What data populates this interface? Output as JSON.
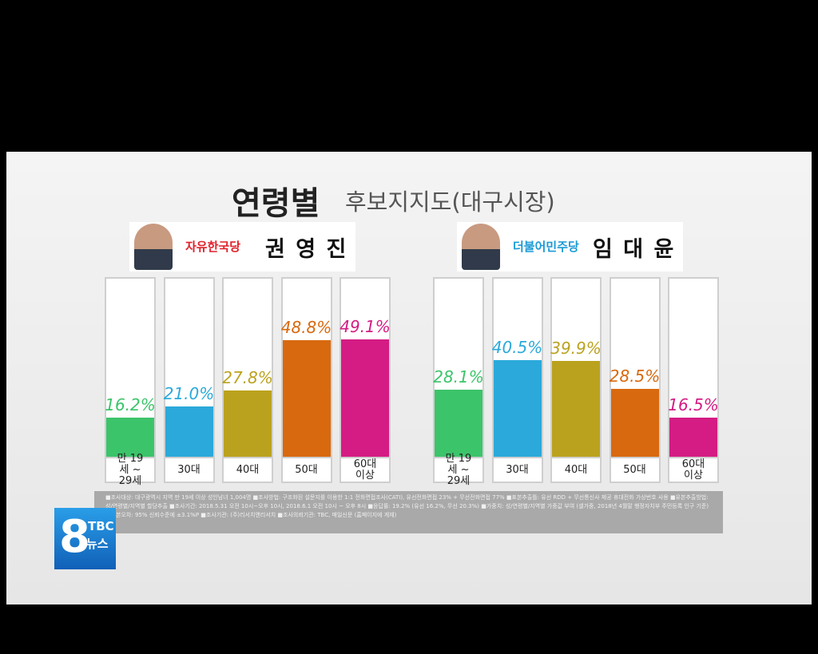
{
  "title": "연령별",
  "subtitle": "후보지지도(대구시장)",
  "chart_data": [
    {
      "type": "bar",
      "party": "자유한국당",
      "party_color": "#e0202a",
      "candidate": "권 영 진",
      "categories": [
        "만 19세 ~ 29세",
        "30대",
        "40대",
        "50대",
        "60대 이상"
      ],
      "values": [
        16.2,
        21.0,
        27.8,
        48.8,
        49.1
      ],
      "value_labels": [
        "16.2%",
        "21.0%",
        "27.8%",
        "48.8%",
        "49.1%"
      ],
      "colors": [
        "#3cc46a",
        "#2ba9da",
        "#bba21e",
        "#d8690f",
        "#d41c84"
      ]
    },
    {
      "type": "bar",
      "party": "더불어민주당",
      "party_color": "#1a9ad6",
      "candidate": "임 대 윤",
      "categories": [
        "만 19세 ~ 29세",
        "30대",
        "40대",
        "50대",
        "60대 이상"
      ],
      "values": [
        28.1,
        40.5,
        39.9,
        28.5,
        16.5
      ],
      "value_labels": [
        "28.1%",
        "40.5%",
        "39.9%",
        "28.5%",
        "16.5%"
      ],
      "colors": [
        "#3cc46a",
        "#2ba9da",
        "#bba21e",
        "#d8690f",
        "#d41c84"
      ]
    }
  ],
  "note": "■조사대상: 대구광역시 지역 만 19세 이상 성인남녀 1,004명 ■조사방법: 구조화된 설문지를 이용한 1:1 전화면접조사(CATI), 유선전화면접 23% + 무선전화면접 77% ■표본추출틀: 유선 RDD + 무선통신사 제공 휴대전화 가상번호 사용 ■유본추출방법: 성/연령별/지역별 할당추출 ■조사기간: 2018.5.31 오전 10시~오후 10시, 2018.6.1 오전 10시 ~ 오후 8시 ■응답률: 19.2% (유선 16.2%, 무선 20.3%) ■가중치: 성/연령별/지역별 가중값 부여 (셀가중, 2018년 4월말 행정자치부 주민등록 인구 기준) ■표본오차: 95% 신뢰수준에 ±3.1%P ■조사기관: (주)리서치앤리서치 ■조사의뢰기관: TBC, 매일신문 (홈페이지에 게재)",
  "logo": {
    "number": "8",
    "station": "TBC",
    "label": "뉴스"
  }
}
